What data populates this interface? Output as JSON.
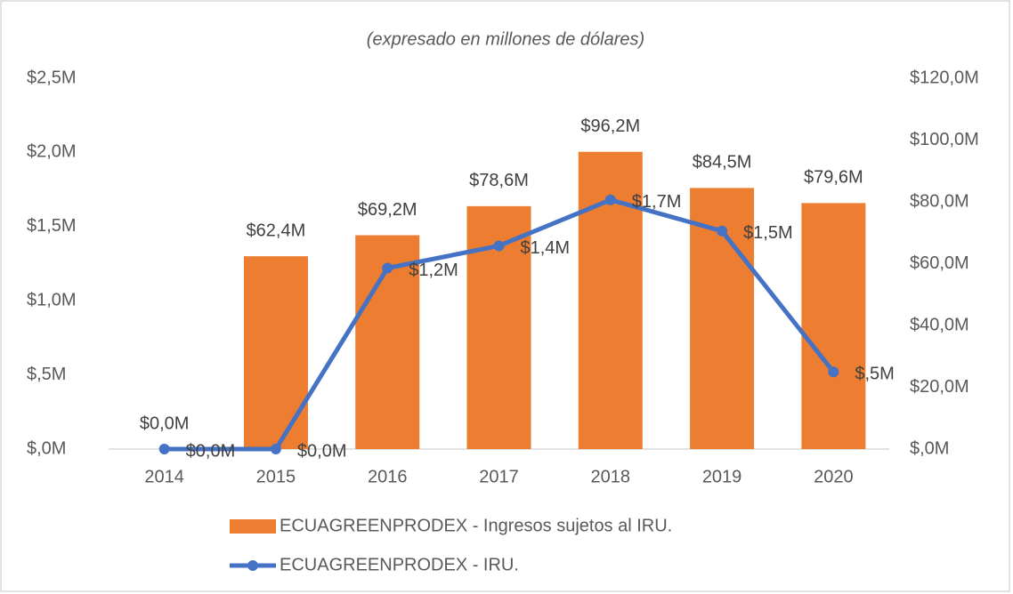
{
  "chart_data": {
    "type": "combo",
    "title": "(expresado en millones de dólares)",
    "categories": [
      "2014",
      "2015",
      "2016",
      "2017",
      "2018",
      "2019",
      "2020"
    ],
    "series": [
      {
        "name": "ECUAGREENPRODEX - Ingresos sujetos al IRU.",
        "type": "bar",
        "axis": "y2",
        "color": "#ED7D31",
        "values": [
          0,
          62.4,
          69.2,
          78.6,
          96.2,
          84.5,
          79.6
        ],
        "value_labels": [
          "$0,0M",
          "$62,4M",
          "$69,2M",
          "$78,6M",
          "$96,2M",
          "$84,5M",
          "$79,6M"
        ]
      },
      {
        "name": "ECUAGREENPRODEX - IRU.",
        "type": "line",
        "color": "#4472C4",
        "values": [
          0,
          0,
          1.22,
          1.37,
          1.68,
          1.47,
          0.52
        ],
        "value_labels": [
          "$0,0M",
          "$0,0M",
          "$1,2M",
          "$1,4M",
          "$1,7M",
          "$1,5M",
          "$,5M"
        ]
      }
    ],
    "ylim": [
      0,
      2.5
    ],
    "yticks": [
      {
        "value": 0,
        "label": "$,0M"
      },
      {
        "value": 0.5,
        "label": "$,5M"
      },
      {
        "value": 1,
        "label": "$1,0M"
      },
      {
        "value": 1.5,
        "label": "$1,5M"
      },
      {
        "value": 2,
        "label": "$2,0M"
      },
      {
        "value": 2.5,
        "label": "$2,5M"
      }
    ],
    "y2lim": [
      0,
      120
    ],
    "y2ticks": [
      {
        "value": 0,
        "label": "$,0M"
      },
      {
        "value": 20,
        "label": "$20,0M"
      },
      {
        "value": 40,
        "label": "$40,0M"
      },
      {
        "value": 60,
        "label": "$60,0M"
      },
      {
        "value": 80,
        "label": "$80,0M"
      },
      {
        "value": 100,
        "label": "$100,0M"
      },
      {
        "value": 120,
        "label": "$120,0M"
      }
    ],
    "grid": false
  }
}
